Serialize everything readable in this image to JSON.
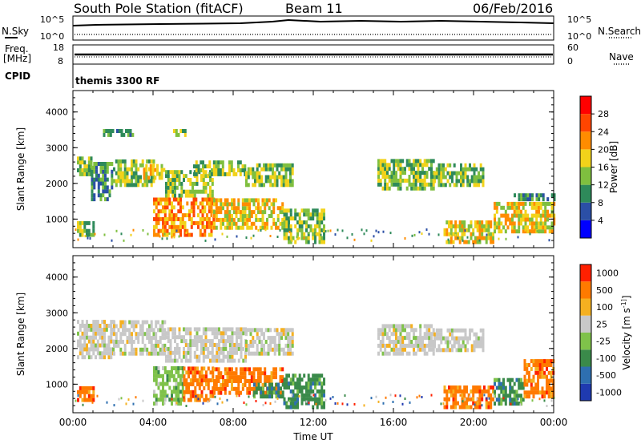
{
  "header": {
    "station": "South Pole Station (fitACF)",
    "beam": "Beam 11",
    "date": "06/Feb/2016"
  },
  "top_panels": {
    "nsky_label": "N.Sky",
    "nsky_top": "10^5",
    "nsky_bottom": "10^0",
    "nsearch_label": "N.Search",
    "nsearch_top": "10^5",
    "nsearch_bottom": "10^0",
    "freq_label_1": "Freq.",
    "freq_label_2": "[MHz]",
    "freq_top": "18",
    "freq_bottom": "8",
    "nave_label": "Nave",
    "nave_top": "60",
    "nave_bottom": "0",
    "cpid_label": "CPID",
    "cpid_value": "themis 3300 RF"
  },
  "x_axis": {
    "label": "Time UT",
    "ticks": [
      "00:00",
      "04:00",
      "08:00",
      "12:00",
      "16:00",
      "20:00",
      "00:00"
    ]
  },
  "colors": {
    "power": [
      "#0000ff",
      "#2b4fa6",
      "#2e8a5a",
      "#7fbf3f",
      "#f2d21a",
      "#ff8c00",
      "#ff4500",
      "#ff0000"
    ],
    "velocity": [
      "#1f3ab0",
      "#2e6fb0",
      "#3a8a4a",
      "#7fc24a",
      "#c8c8c8",
      "#f5b020",
      "#ff7a00",
      "#ff2000"
    ]
  },
  "chart_data": [
    {
      "type": "heatmap",
      "title": "",
      "ylabel": "Slant Range [km]",
      "xlabel": "",
      "xlim": [
        0,
        24
      ],
      "ylim": [
        200,
        4600
      ],
      "yticks": [
        1000,
        2000,
        3000,
        4000
      ],
      "colorbar_label": "Power [dB]",
      "colorbar_ticks": [
        "4",
        "8",
        "12",
        "16",
        "20",
        "24",
        "28"
      ],
      "colorbar_range": [
        0,
        32
      ],
      "regions": [
        {
          "t": [
            0.2,
            0.9
          ],
          "r": [
            2200,
            2700
          ],
          "v": 14
        },
        {
          "t": [
            0.9,
            2.0
          ],
          "r": [
            1500,
            2500
          ],
          "v": 10
        },
        {
          "t": [
            2.0,
            4.0
          ],
          "r": [
            1900,
            2600
          ],
          "v": 14
        },
        {
          "t": [
            3.5,
            4.6
          ],
          "r": [
            2100,
            2500
          ],
          "v": 18
        },
        {
          "t": [
            4.6,
            7.0
          ],
          "r": [
            1600,
            2300
          ],
          "v": 12
        },
        {
          "t": [
            6.0,
            8.6
          ],
          "r": [
            2200,
            2600
          ],
          "v": 14
        },
        {
          "t": [
            8.6,
            11.0
          ],
          "r": [
            1900,
            2500
          ],
          "v": 13
        },
        {
          "t": [
            4.0,
            7.0
          ],
          "r": [
            500,
            1600
          ],
          "v": 20
        },
        {
          "t": [
            7.0,
            10.5
          ],
          "r": [
            700,
            1500
          ],
          "v": 19
        },
        {
          "t": [
            10.5,
            12.5
          ],
          "r": [
            300,
            1200
          ],
          "v": 15
        },
        {
          "t": [
            15.2,
            18.0
          ],
          "r": [
            1800,
            2600
          ],
          "v": 12
        },
        {
          "t": [
            18.0,
            20.5
          ],
          "r": [
            1900,
            2500
          ],
          "v": 12
        },
        {
          "t": [
            18.5,
            21.0
          ],
          "r": [
            300,
            900
          ],
          "v": 18
        },
        {
          "t": [
            21.0,
            24.0
          ],
          "r": [
            600,
            1400
          ],
          "v": 19
        },
        {
          "t": [
            22.0,
            24.0
          ],
          "r": [
            1500,
            1700
          ],
          "v": 8
        },
        {
          "t": [
            0.2,
            1.0
          ],
          "r": [
            500,
            900
          ],
          "v": 12
        },
        {
          "t": [
            1.5,
            3.0
          ],
          "r": [
            3300,
            3500
          ],
          "v": 10
        },
        {
          "t": [
            5.0,
            5.6
          ],
          "r": [
            3300,
            3500
          ],
          "v": 12
        }
      ]
    },
    {
      "type": "heatmap",
      "title": "",
      "ylabel": "Slant Range [km]",
      "xlabel": "Time UT",
      "xlim": [
        0,
        24
      ],
      "ylim": [
        200,
        4600
      ],
      "yticks": [
        1000,
        2000,
        3000,
        4000
      ],
      "colorbar_label": "Velocity [m s^-1]",
      "colorbar_ticks": [
        "1000",
        "500",
        "100",
        "25",
        "-25",
        "-100",
        "-500",
        "-1000"
      ],
      "regions": [
        {
          "t": [
            0.2,
            2.0
          ],
          "r": [
            1700,
            2700
          ],
          "v": 4
        },
        {
          "t": [
            2.0,
            4.6
          ],
          "r": [
            1800,
            2700
          ],
          "v": 4
        },
        {
          "t": [
            4.6,
            8.6
          ],
          "r": [
            1600,
            2500
          ],
          "v": 4
        },
        {
          "t": [
            8.6,
            11.0
          ],
          "r": [
            1800,
            2500
          ],
          "v": 4
        },
        {
          "t": [
            4.0,
            5.5
          ],
          "r": [
            400,
            1400
          ],
          "v": 3
        },
        {
          "t": [
            5.5,
            7.0
          ],
          "r": [
            500,
            1400
          ],
          "v": 6
        },
        {
          "t": [
            7.0,
            10.5
          ],
          "r": [
            700,
            1400
          ],
          "v": 6
        },
        {
          "t": [
            9.0,
            10.5
          ],
          "r": [
            600,
            1000
          ],
          "v": 2
        },
        {
          "t": [
            10.5,
            12.5
          ],
          "r": [
            300,
            1200
          ],
          "v": 2
        },
        {
          "t": [
            15.2,
            18.0
          ],
          "r": [
            1800,
            2600
          ],
          "v": 4
        },
        {
          "t": [
            18.0,
            20.5
          ],
          "r": [
            1900,
            2500
          ],
          "v": 4
        },
        {
          "t": [
            18.5,
            21.0
          ],
          "r": [
            300,
            900
          ],
          "v": 6
        },
        {
          "t": [
            21.0,
            22.5
          ],
          "r": [
            400,
            1100
          ],
          "v": 2
        },
        {
          "t": [
            22.5,
            24.0
          ],
          "r": [
            600,
            1600
          ],
          "v": 6
        },
        {
          "t": [
            0.2,
            1.0
          ],
          "r": [
            500,
            900
          ],
          "v": 6
        }
      ]
    }
  ]
}
